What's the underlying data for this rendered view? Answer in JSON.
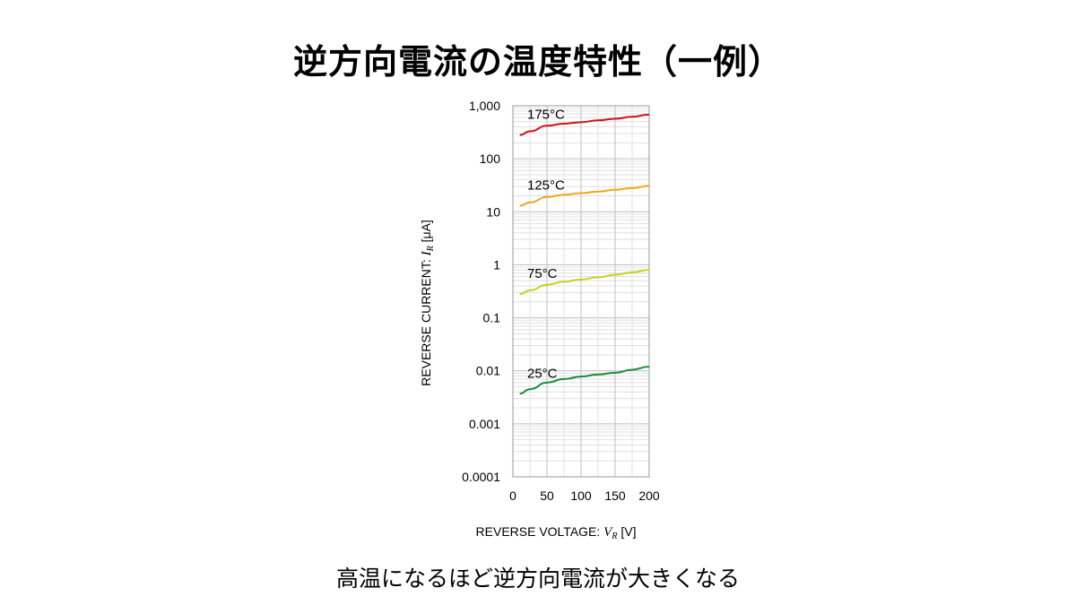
{
  "title": "逆方向電流の温度特性（一例）",
  "caption": "高温になるほど逆方向電流が大きくなる",
  "chart_data": {
    "type": "line",
    "xlabel": {
      "text": "REVERSE VOLTAGE: ",
      "var": "V",
      "sub": "R",
      "unit": " [V]"
    },
    "ylabel": {
      "text": "REVERSE CURRENT: ",
      "var": "I",
      "sub": "R",
      "unit": " [μA]"
    },
    "xlim": [
      0,
      200
    ],
    "ylim": [
      0.0001,
      1000
    ],
    "yscale": "log",
    "grid": true,
    "x_ticks": [
      0,
      50,
      100,
      150,
      200
    ],
    "x_tick_labels": [
      "0",
      "50",
      "100",
      "150",
      "200"
    ],
    "y_ticks": [
      0.0001,
      0.001,
      0.01,
      0.1,
      1,
      10,
      100,
      1000
    ],
    "y_tick_labels": [
      "0.0001",
      "0.001",
      "0.01",
      "0.1",
      "1",
      "10",
      "100",
      "1,000"
    ],
    "series": [
      {
        "name": "175°C",
        "color": "#d0121b",
        "x": [
          10,
          25,
          50,
          75,
          100,
          125,
          150,
          175,
          200
        ],
        "y": [
          280,
          330,
          420,
          460,
          490,
          530,
          570,
          620,
          680
        ]
      },
      {
        "name": "125°C",
        "color": "#f2a61c",
        "x": [
          10,
          25,
          50,
          75,
          100,
          125,
          150,
          175,
          200
        ],
        "y": [
          13,
          15,
          19,
          21,
          22.5,
          24,
          26,
          28,
          31
        ]
      },
      {
        "name": "75°C",
        "color": "#c8d21c",
        "x": [
          10,
          25,
          50,
          75,
          100,
          125,
          150,
          175,
          200
        ],
        "y": [
          0.28,
          0.33,
          0.42,
          0.48,
          0.53,
          0.58,
          0.65,
          0.72,
          0.8
        ]
      },
      {
        "name": "25°C",
        "color": "#1a8c3a",
        "x": [
          10,
          25,
          50,
          75,
          100,
          125,
          150,
          175,
          200
        ],
        "y": [
          0.0037,
          0.0045,
          0.006,
          0.007,
          0.0078,
          0.0085,
          0.0092,
          0.0105,
          0.012
        ]
      }
    ]
  }
}
